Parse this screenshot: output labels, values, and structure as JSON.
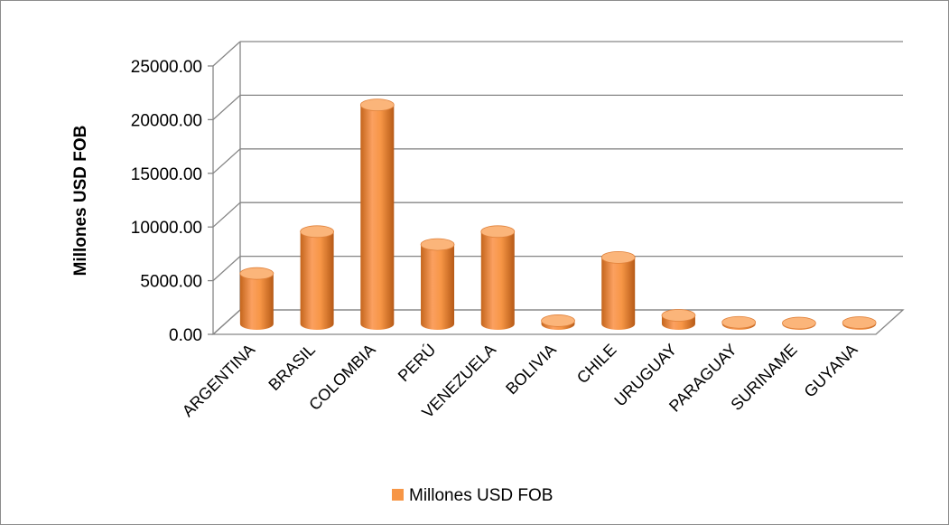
{
  "chart_data": {
    "type": "bar",
    "title": "",
    "ylabel": "Millones USD FOB",
    "xlabel": "",
    "ylim": [
      0,
      25000
    ],
    "y_ticks": [
      0,
      5000,
      10000,
      15000,
      20000,
      25000
    ],
    "y_tick_labels": [
      "0.00",
      "5000.00",
      "10000.00",
      "15000.00",
      "20000.00",
      "25000.00"
    ],
    "categories": [
      "ARGENTINA",
      "BRASIL",
      "COLOMBIA",
      "PERÚ",
      "VENEZUELA",
      "BOLIVIA",
      "CHILE",
      "URUGUAY",
      "PARAGUAY",
      "SURINAME",
      "GUYANA"
    ],
    "series": [
      {
        "name": "Millones USD FOB",
        "values": [
          4700,
          8600,
          20400,
          7400,
          8600,
          300,
          6200,
          800,
          150,
          80,
          120
        ]
      }
    ],
    "grid": true,
    "bar_shape": "cylinder-3d",
    "legend": "bottom-center",
    "colors": {
      "bar": "#f79646",
      "bar_dark": "#c96a1f",
      "bar_light": "#fbb57a",
      "grid": "#868686"
    }
  }
}
